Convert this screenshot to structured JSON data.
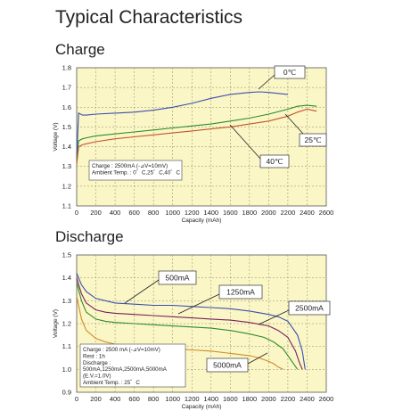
{
  "title": "Typical Characteristics",
  "chart_data": [
    {
      "type": "line",
      "title": "Charge",
      "xlabel": "Capacity (mAh)",
      "ylabel": "Voltage (V)",
      "xlim": [
        0,
        2600
      ],
      "ylim": [
        1.1,
        1.8
      ],
      "xticks": [
        0,
        200,
        400,
        600,
        800,
        1000,
        1200,
        1400,
        1600,
        1800,
        2000,
        2200,
        2400,
        2600
      ],
      "yticks": [
        1.1,
        1.2,
        1.3,
        1.4,
        1.5,
        1.6,
        1.7,
        1.8
      ],
      "grid": true,
      "series": [
        {
          "name": "0℃",
          "color": "#3a4fb0",
          "x": [
            0,
            20,
            60,
            100,
            200,
            400,
            600,
            800,
            1000,
            1200,
            1400,
            1600,
            1800,
            1900,
            2000,
            2100,
            2200
          ],
          "y": [
            1.34,
            1.57,
            1.56,
            1.56,
            1.565,
            1.57,
            1.575,
            1.585,
            1.6,
            1.62,
            1.645,
            1.665,
            1.675,
            1.678,
            1.675,
            1.67,
            1.665
          ]
        },
        {
          "name": "25℃",
          "color": "#2e8b2e",
          "x": [
            0,
            20,
            60,
            100,
            200,
            400,
            600,
            800,
            1000,
            1200,
            1400,
            1600,
            1800,
            2000,
            2200,
            2300,
            2400,
            2500
          ],
          "y": [
            1.33,
            1.43,
            1.44,
            1.445,
            1.455,
            1.465,
            1.475,
            1.485,
            1.495,
            1.505,
            1.515,
            1.53,
            1.545,
            1.565,
            1.59,
            1.605,
            1.61,
            1.605
          ]
        },
        {
          "name": "40℃",
          "color": "#c0562b",
          "x": [
            0,
            20,
            60,
            100,
            200,
            400,
            600,
            800,
            1000,
            1200,
            1400,
            1600,
            1800,
            2000,
            2200,
            2300,
            2400,
            2500
          ],
          "y": [
            1.31,
            1.4,
            1.41,
            1.415,
            1.425,
            1.44,
            1.45,
            1.46,
            1.47,
            1.48,
            1.49,
            1.5,
            1.515,
            1.53,
            1.555,
            1.575,
            1.59,
            1.58
          ]
        }
      ],
      "annotation_lines": [
        "Charge : 2500mA (-⊿V=10mV)",
        "Ambient Temp. : 0゜C,25゜C,40゜C"
      ],
      "callouts": [
        "0℃",
        "25℃",
        "40℃"
      ]
    },
    {
      "type": "line",
      "title": "Discharge",
      "xlabel": "Capacity (mAh)",
      "ylabel": "Voltage (V)",
      "xlim": [
        0,
        2600
      ],
      "ylim": [
        0.9,
        1.5
      ],
      "xticks": [
        0,
        200,
        400,
        600,
        800,
        1000,
        1200,
        1400,
        1600,
        1800,
        2000,
        2200,
        2400,
        2600
      ],
      "yticks": [
        0.9,
        1.0,
        1.1,
        1.2,
        1.3,
        1.4,
        1.5
      ],
      "grid": true,
      "series": [
        {
          "name": "500mA",
          "color": "#3a4fb0",
          "x": [
            0,
            50,
            100,
            200,
            300,
            400,
            600,
            800,
            1000,
            1200,
            1400,
            1600,
            1800,
            2000,
            2100,
            2200,
            2300,
            2350,
            2380
          ],
          "y": [
            1.42,
            1.37,
            1.34,
            1.31,
            1.3,
            1.29,
            1.285,
            1.28,
            1.28,
            1.275,
            1.27,
            1.265,
            1.255,
            1.24,
            1.23,
            1.21,
            1.15,
            1.08,
            1.0
          ]
        },
        {
          "name": "1250mA",
          "color": "#7a1f5c",
          "x": [
            0,
            50,
            100,
            200,
            300,
            400,
            600,
            800,
            1000,
            1200,
            1400,
            1600,
            1800,
            2000,
            2100,
            2200,
            2280,
            2320,
            2350
          ],
          "y": [
            1.4,
            1.33,
            1.29,
            1.26,
            1.25,
            1.245,
            1.24,
            1.235,
            1.23,
            1.225,
            1.22,
            1.215,
            1.205,
            1.19,
            1.17,
            1.14,
            1.08,
            1.03,
            1.0
          ]
        },
        {
          "name": "2500mA",
          "color": "#2e8b2e",
          "x": [
            0,
            50,
            100,
            200,
            300,
            400,
            600,
            800,
            1000,
            1200,
            1400,
            1600,
            1800,
            1950,
            2050,
            2150,
            2250,
            2300
          ],
          "y": [
            1.38,
            1.3,
            1.25,
            1.22,
            1.21,
            1.205,
            1.2,
            1.195,
            1.19,
            1.185,
            1.18,
            1.17,
            1.155,
            1.14,
            1.12,
            1.09,
            1.03,
            1.0
          ]
        },
        {
          "name": "5000mA",
          "color": "#d08a2a",
          "x": [
            0,
            50,
            100,
            200,
            300,
            400,
            600,
            800,
            1000,
            1200,
            1400,
            1600,
            1800,
            1900,
            2000,
            2050,
            2100,
            2150
          ],
          "y": [
            1.32,
            1.22,
            1.17,
            1.135,
            1.12,
            1.11,
            1.1,
            1.095,
            1.09,
            1.085,
            1.08,
            1.07,
            1.06,
            1.05,
            1.035,
            1.025,
            1.01,
            1.0
          ]
        }
      ],
      "annotation_lines": [
        "Charge : 2500 mA (-⊿V=10mV)",
        "Rest : 1h",
        "Discharge :",
        "500mA,1250mA,2500mA,5000mA",
        "(E.V.=1.0V)",
        "Ambient Temp. : 25゜C"
      ],
      "callouts": [
        "500mA",
        "1250mA",
        "2500mA",
        "5000mA"
      ]
    }
  ]
}
